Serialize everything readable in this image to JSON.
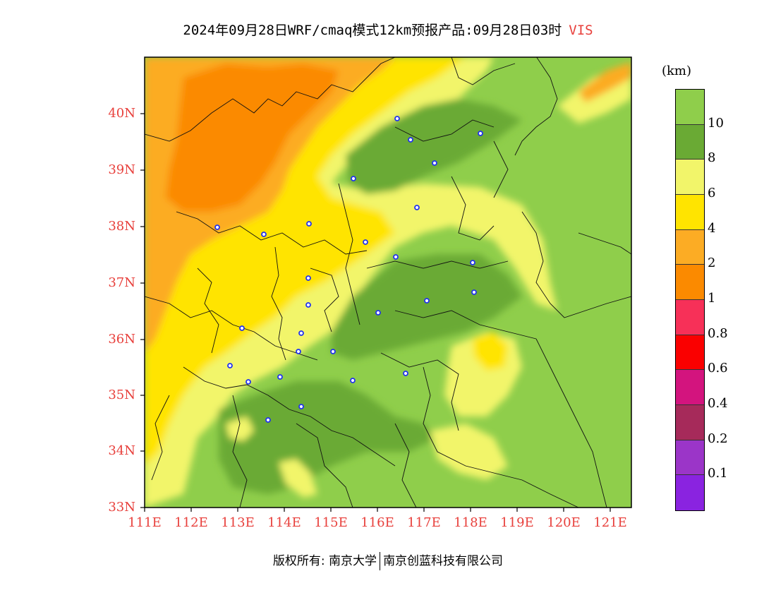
{
  "title": {
    "main": "2024年09月28日WRF/cmaq模式12km预报产品:09月28日03时",
    "variable": "VIS"
  },
  "map": {
    "lat_labels": [
      "40N",
      "39N",
      "38N",
      "37N",
      "36N",
      "35N",
      "34N",
      "33N"
    ],
    "lon_labels": [
      "111E",
      "112E",
      "113E",
      "114E",
      "115E",
      "116E",
      "117E",
      "118E",
      "119E",
      "120E",
      "121E"
    ]
  },
  "legend": {
    "unit": "(km)",
    "labels": [
      "10",
      "8",
      "6",
      "4",
      "2",
      "1",
      "0.8",
      "0.6",
      "0.4",
      "0.2",
      "0.1"
    ],
    "colors": [
      "#8fce4b",
      "#6aaa34",
      "#f2f56a",
      "#ffe400",
      "#fcac24",
      "#fb8a00",
      "#f73058",
      "#fa0000",
      "#d3147e",
      "#a62a5a",
      "#9b35c8",
      "#8a23e0"
    ]
  },
  "footer": {
    "left": "版权所有: 南京大学",
    "right": "南京创蓝科技有限公司"
  }
}
